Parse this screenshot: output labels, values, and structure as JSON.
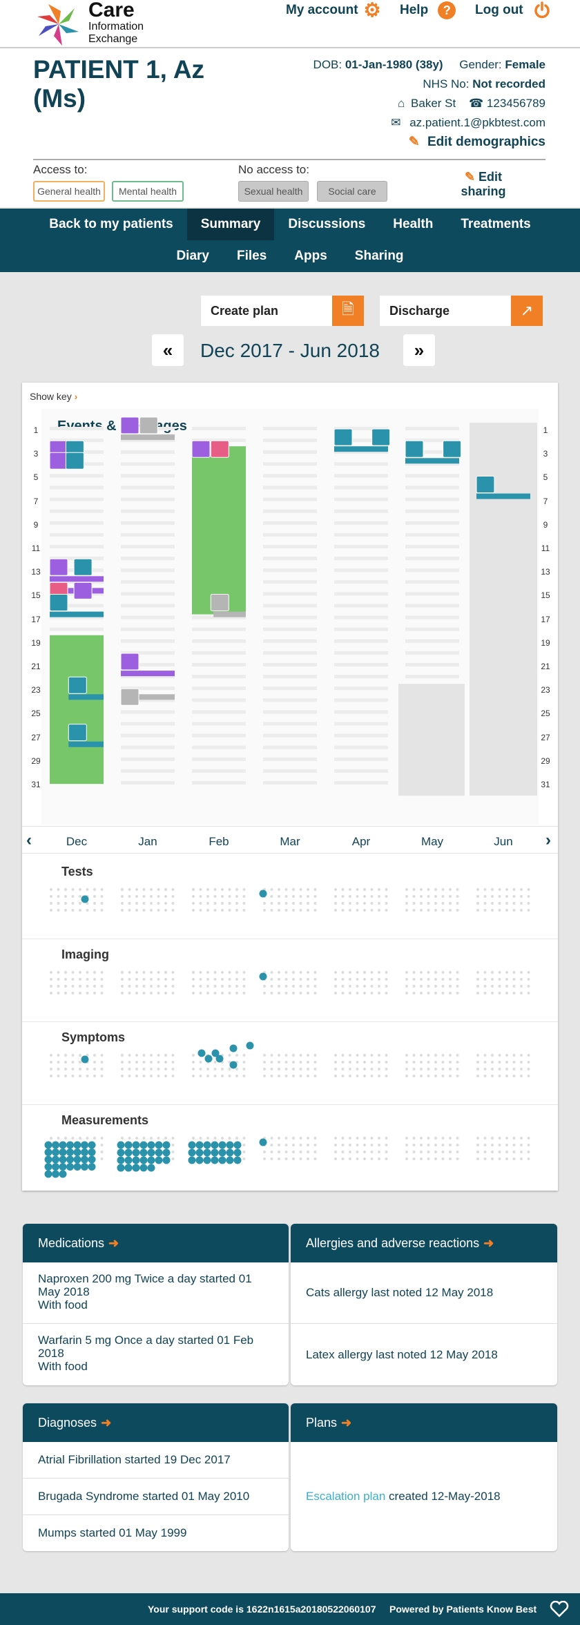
{
  "header": {
    "logo_text": [
      "Care",
      "Information",
      "Exchange"
    ],
    "nav": {
      "my_account": "My account",
      "help": "Help",
      "logout": "Log out"
    }
  },
  "patient": {
    "name": "PATIENT 1, Az (Ms)",
    "dob_label": "DOB:",
    "dob": "01-Jan-1980 (38y)",
    "gender_label": "Gender:",
    "gender": "Female",
    "nhs_label": "NHS No:",
    "nhs": "Not recorded",
    "address": "Baker St",
    "phone": "123456789",
    "email": "az.patient.1@pkbtest.com",
    "edit_demographics": "Edit demographics"
  },
  "access": {
    "access_label": "Access to:",
    "no_access_label": "No access to:",
    "access_items": [
      "General health",
      "Mental health"
    ],
    "no_access_items": [
      "Sexual health",
      "Social care"
    ],
    "edit_sharing": "Edit sharing"
  },
  "nav": {
    "row1": [
      "Back to my patients",
      "Summary",
      "Discussions",
      "Health",
      "Treatments"
    ],
    "row2": [
      "Diary",
      "Files",
      "Apps",
      "Sharing"
    ],
    "active": "Summary"
  },
  "actions": {
    "create_plan": "Create plan",
    "discharge": "Discharge"
  },
  "timeline": {
    "range": "Dec 2017 - Jun 2018",
    "show_key": "Show key",
    "events_title": "Events & messages",
    "day_labels": [
      "1",
      "3",
      "5",
      "7",
      "9",
      "11",
      "13",
      "15",
      "17",
      "19",
      "21",
      "23",
      "25",
      "27",
      "29",
      "31"
    ],
    "months": [
      "Dec",
      "Jan",
      "Feb",
      "Mar",
      "Apr",
      "May",
      "Jun"
    ],
    "sections": [
      "Tests",
      "Imaging",
      "Symptoms",
      "Measurements"
    ],
    "colors": {
      "appointment": "#2a93ab",
      "person": "#9c5fe0",
      "note": "#b5b5b5",
      "admission": "#77c66a",
      "alert": "#e85d86"
    }
  },
  "cards": {
    "medications": {
      "title": "Medications",
      "items": [
        {
          "line1": "Naproxen 200 mg Twice a day started 01 May 2018",
          "line2": "With food"
        },
        {
          "line1": "Warfarin 5 mg Once a day started 01 Feb 2018",
          "line2": "With food"
        }
      ]
    },
    "allergies": {
      "title": "Allergies and adverse reactions",
      "items": [
        "Cats allergy last noted 12 May 2018",
        "Latex allergy last noted 12 May 2018"
      ]
    },
    "diagnoses": {
      "title": "Diagnoses",
      "items": [
        "Atrial Fibrillation started 19 Dec 2017",
        "Brugada Syndrome started 01 May 2010",
        "Mumps started 01 May 1999"
      ]
    },
    "plans": {
      "title": "Plans",
      "link": "Escalation plan",
      "text": " created 12-May-2018"
    }
  },
  "footer": {
    "support_label": "Your support code is ",
    "support_code": "1622n1615a20180522060107",
    "powered": "Powered by Patients Know Best"
  }
}
